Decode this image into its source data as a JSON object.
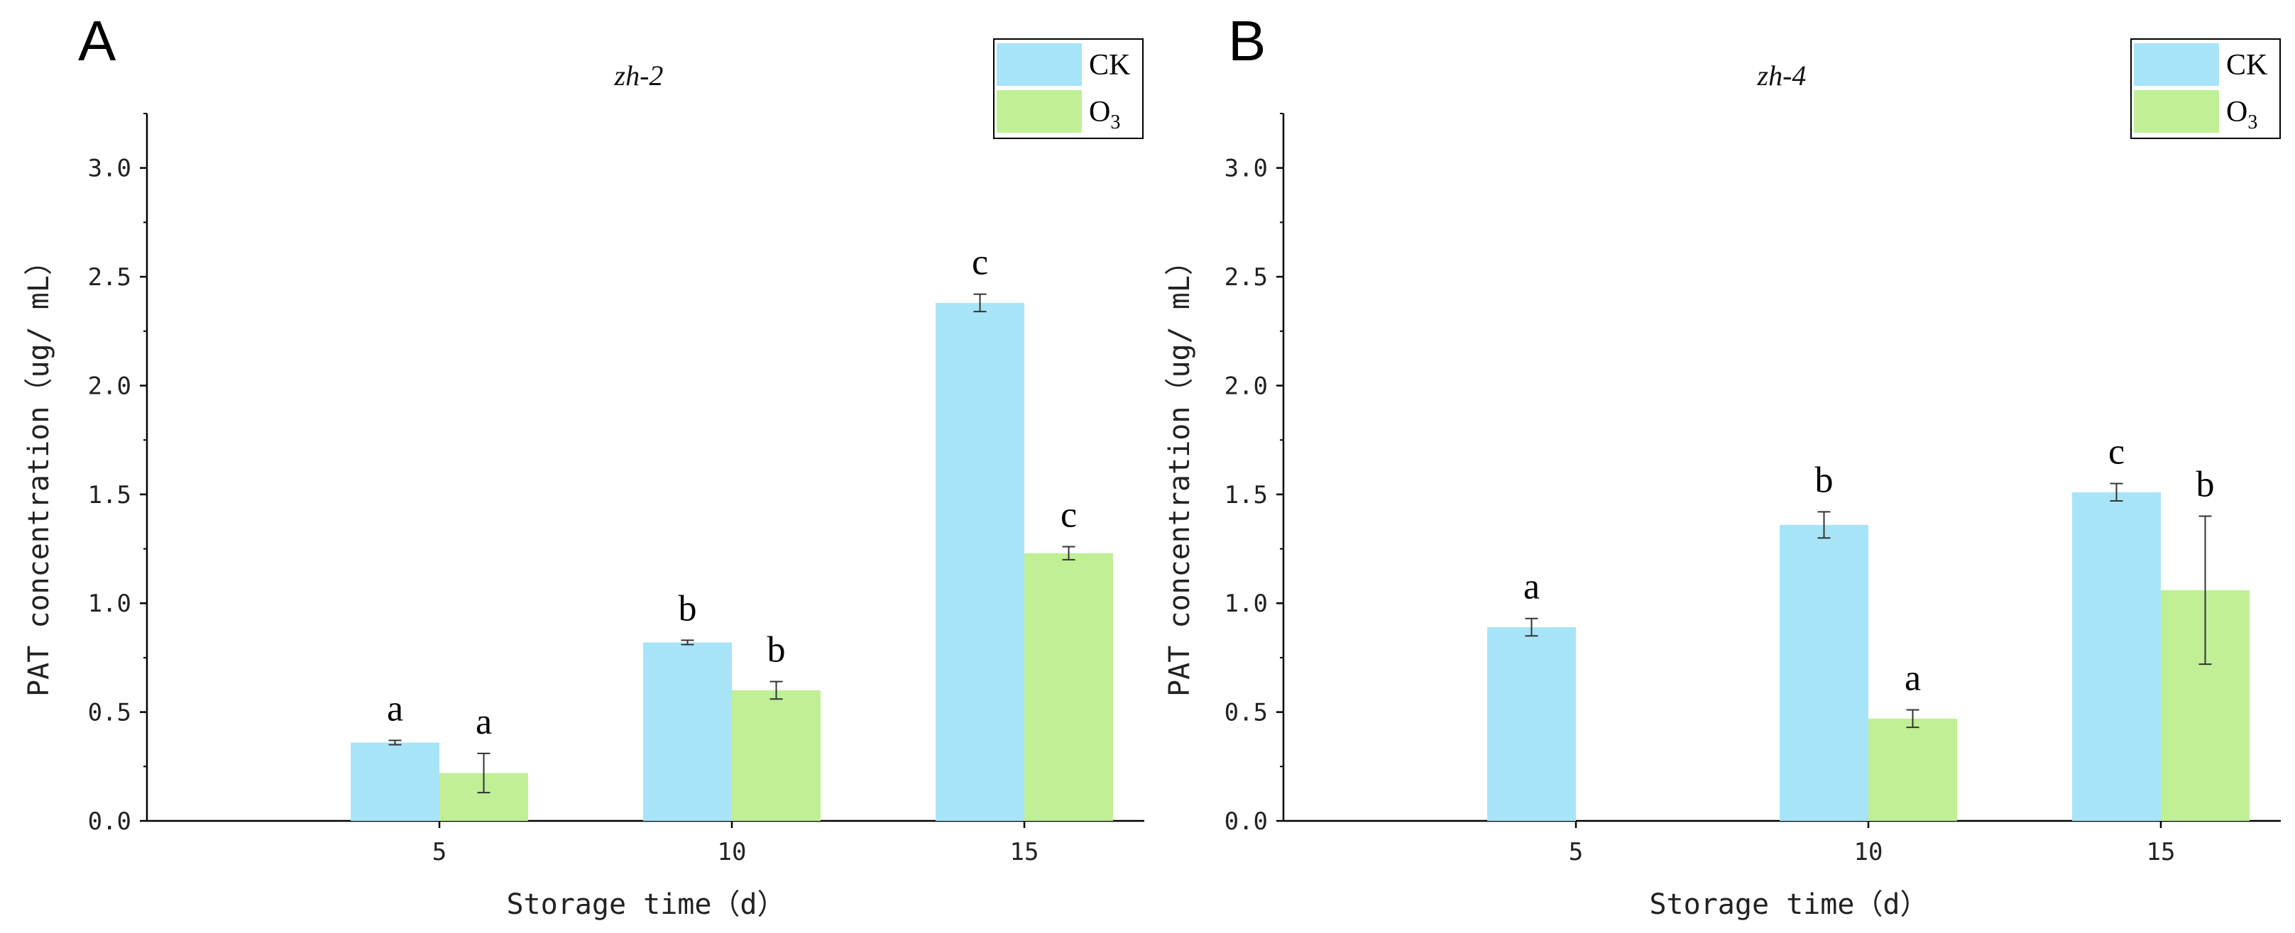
{
  "chart_data": [
    {
      "type": "bar",
      "panel_label": "A",
      "title": "zh-2",
      "xlabel": "Storage time（d）",
      "ylabel": "PAT concentration（ug/ mL）",
      "categories": [
        "5",
        "10",
        "15"
      ],
      "ylim": [
        0,
        3.25
      ],
      "yticks": [
        "0.0",
        "0.5",
        "1.0",
        "1.5",
        "2.0",
        "2.5",
        "3.0"
      ],
      "legend_position": "top-right",
      "series": [
        {
          "name": "CK",
          "color": "#a8e4f8",
          "values": [
            0.36,
            0.82,
            2.38
          ],
          "errors": [
            0.01,
            0.01,
            0.04
          ],
          "labels": [
            "a",
            "b",
            "c"
          ]
        },
        {
          "name": "O3",
          "color": "#c0ef96",
          "values": [
            0.22,
            0.6,
            1.23
          ],
          "errors": [
            0.09,
            0.04,
            0.03
          ],
          "labels": [
            "a",
            "b",
            "c"
          ]
        }
      ]
    },
    {
      "type": "bar",
      "panel_label": "B",
      "title": "zh-4",
      "xlabel": "Storage time（d）",
      "ylabel": "PAT concentration（ug/ mL）",
      "categories": [
        "5",
        "10",
        "15"
      ],
      "ylim": [
        0,
        3.25
      ],
      "yticks": [
        "0.0",
        "0.5",
        "1.0",
        "1.5",
        "2.0",
        "2.5",
        "3.0"
      ],
      "legend_position": "top-right",
      "series": [
        {
          "name": "CK",
          "color": "#a8e4f8",
          "values": [
            0.89,
            1.36,
            1.51
          ],
          "errors": [
            0.04,
            0.06,
            0.04
          ],
          "labels": [
            "a",
            "b",
            "c"
          ]
        },
        {
          "name": "O3",
          "color": "#c0ef96",
          "values": [
            0,
            0.47,
            1.06
          ],
          "errors": [
            0,
            0.04,
            0.34
          ],
          "labels": [
            "",
            "a",
            "b"
          ]
        }
      ]
    }
  ]
}
